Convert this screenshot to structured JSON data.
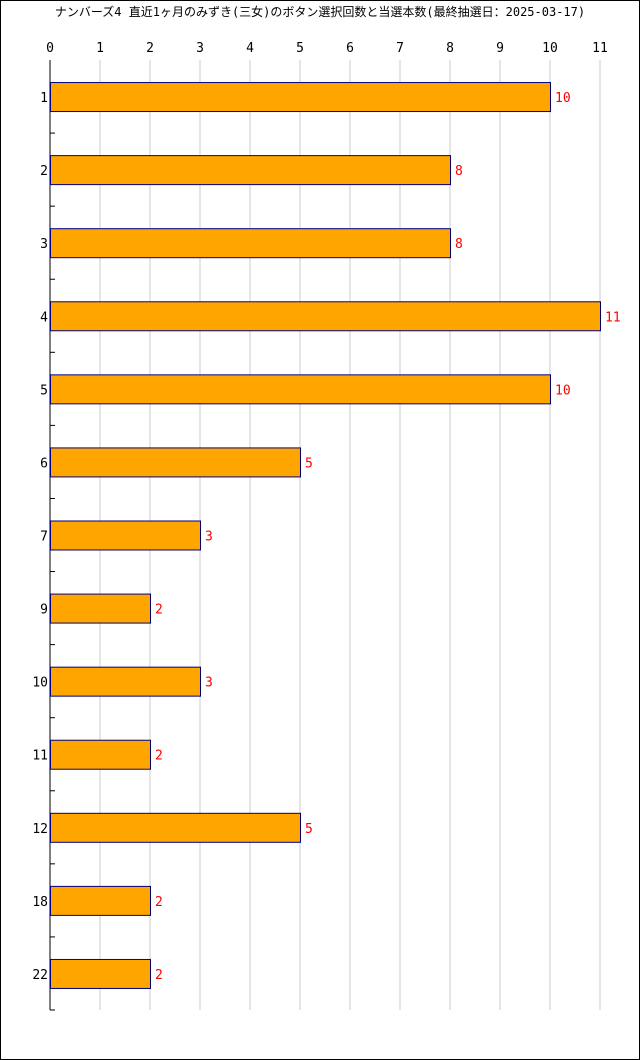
{
  "chart_data": {
    "type": "bar",
    "orientation": "horizontal",
    "title": "ナンバーズ4 直近1ヶ月のみずき(三女)のボタン選択回数と当選本数(最終抽選日：2025-03-17)",
    "categories": [
      "1",
      "2",
      "3",
      "4",
      "5",
      "6",
      "7",
      "9",
      "10",
      "11",
      "12",
      "18",
      "22"
    ],
    "values": [
      10,
      8,
      8,
      11,
      10,
      5,
      3,
      2,
      3,
      2,
      5,
      2,
      2
    ],
    "xlim": [
      0,
      11
    ],
    "x_ticks": [
      "0",
      "1",
      "2",
      "3",
      "4",
      "5",
      "6",
      "7",
      "8",
      "9",
      "10",
      "11"
    ],
    "x_axis_position": "top",
    "grid": true,
    "data_labels": true,
    "colors": {
      "bar_fill": "#FFA500",
      "bar_stroke": "#000080",
      "label": "#FF0000",
      "grid": "#CCCCCC",
      "axis": "#000000"
    }
  }
}
